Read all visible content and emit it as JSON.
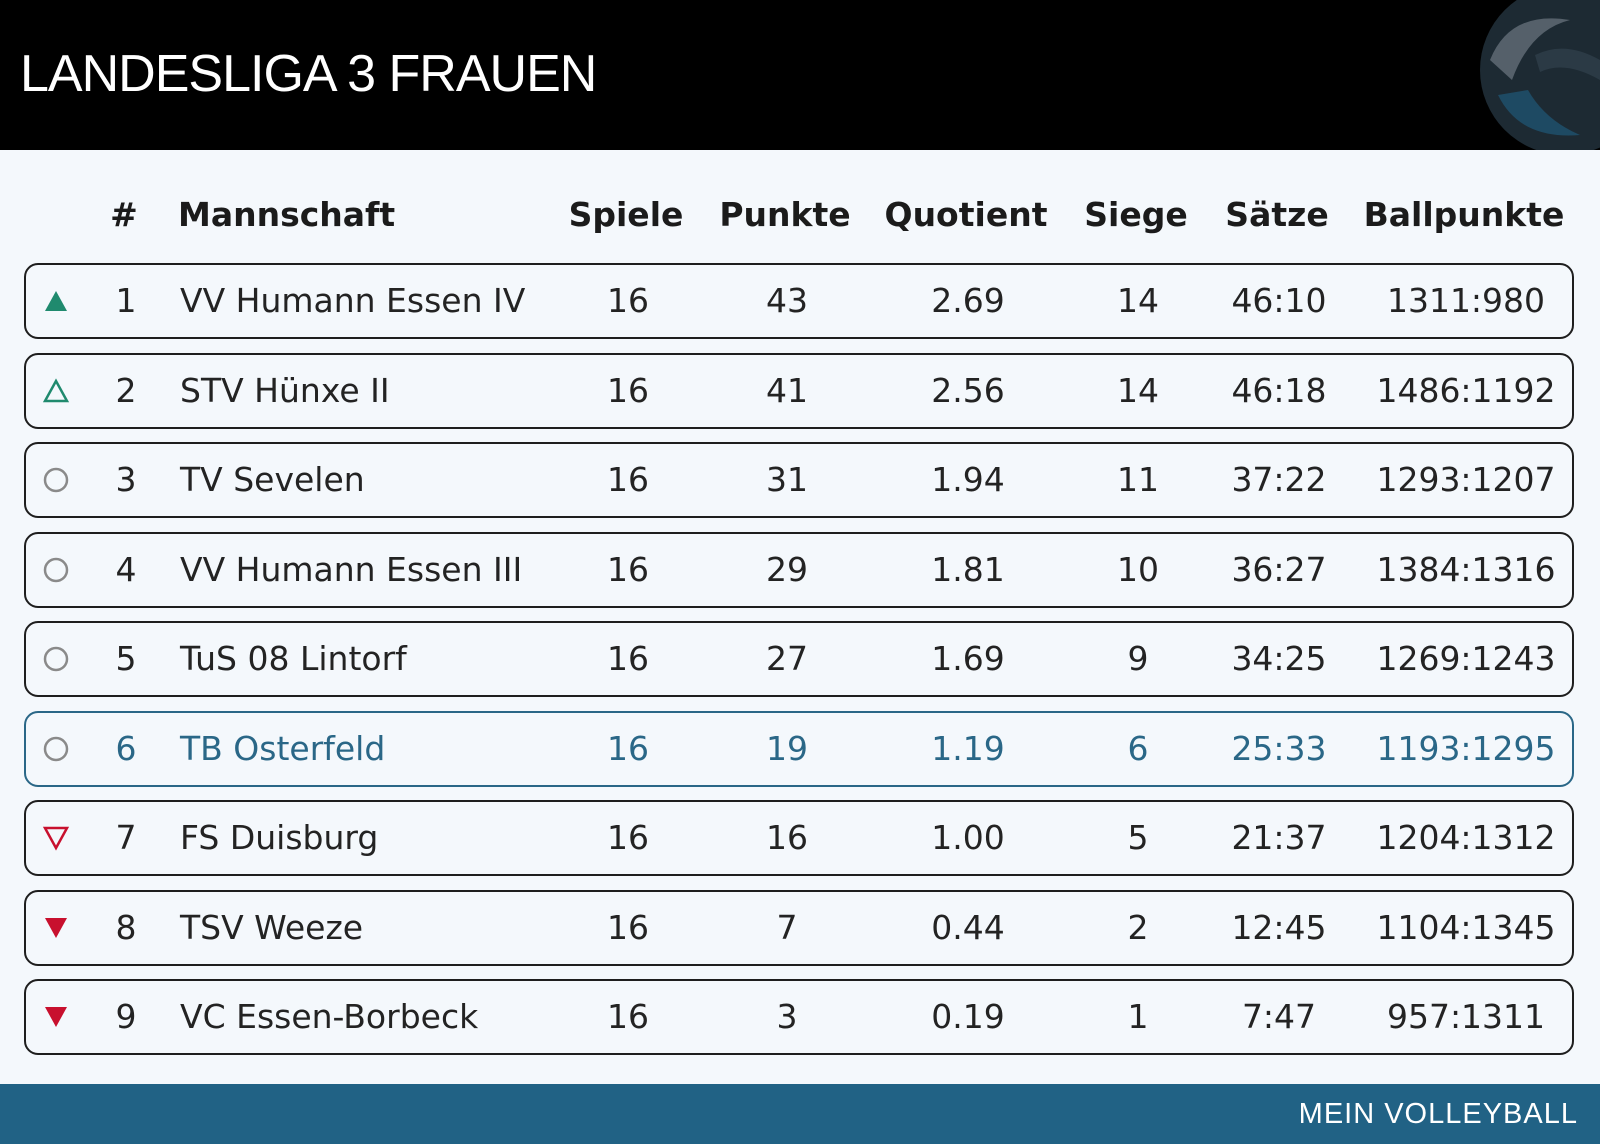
{
  "header": {
    "title": "LANDESLIGA 3 FRAUEN",
    "logo_icon": "volleyball-icon"
  },
  "table": {
    "columns": [
      "#",
      "Mannschaft",
      "Spiele",
      "Punkte",
      "Quotient",
      "Siege",
      "Sätze",
      "Ballpunkte"
    ],
    "rows": [
      {
        "trend": "promoted",
        "rank": "1",
        "team": "VV Humann Essen IV",
        "games": "16",
        "points": "43",
        "quotient": "2.69",
        "wins": "14",
        "sets": "46:10",
        "ballpoints": "1311:980",
        "highlight": false
      },
      {
        "trend": "promotion-playoff",
        "rank": "2",
        "team": "STV Hünxe II",
        "games": "16",
        "points": "41",
        "quotient": "2.56",
        "wins": "14",
        "sets": "46:18",
        "ballpoints": "1486:1192",
        "highlight": false
      },
      {
        "trend": "neutral",
        "rank": "3",
        "team": "TV Sevelen",
        "games": "16",
        "points": "31",
        "quotient": "1.94",
        "wins": "11",
        "sets": "37:22",
        "ballpoints": "1293:1207",
        "highlight": false
      },
      {
        "trend": "neutral",
        "rank": "4",
        "team": "VV Humann Essen III",
        "games": "16",
        "points": "29",
        "quotient": "1.81",
        "wins": "10",
        "sets": "36:27",
        "ballpoints": "1384:1316",
        "highlight": false
      },
      {
        "trend": "neutral",
        "rank": "5",
        "team": "TuS 08 Lintorf",
        "games": "16",
        "points": "27",
        "quotient": "1.69",
        "wins": "9",
        "sets": "34:25",
        "ballpoints": "1269:1243",
        "highlight": false
      },
      {
        "trend": "neutral",
        "rank": "6",
        "team": "TB Osterfeld",
        "games": "16",
        "points": "19",
        "quotient": "1.19",
        "wins": "6",
        "sets": "25:33",
        "ballpoints": "1193:1295",
        "highlight": true
      },
      {
        "trend": "relegation-playoff",
        "rank": "7",
        "team": "FS Duisburg",
        "games": "16",
        "points": "16",
        "quotient": "1.00",
        "wins": "5",
        "sets": "21:37",
        "ballpoints": "1204:1312",
        "highlight": false
      },
      {
        "trend": "relegated",
        "rank": "8",
        "team": "TSV Weeze",
        "games": "16",
        "points": "7",
        "quotient": "0.44",
        "wins": "2",
        "sets": "12:45",
        "ballpoints": "1104:1345",
        "highlight": false
      },
      {
        "trend": "relegated",
        "rank": "9",
        "team": "VC Essen-Borbeck",
        "games": "16",
        "points": "3",
        "quotient": "0.19",
        "wins": "1",
        "sets": "7:47",
        "ballpoints": "957:1311",
        "highlight": false
      }
    ]
  },
  "footer": {
    "brand": "MEIN VOLLEYBALL"
  },
  "colors": {
    "header_bg": "#000000",
    "footer_bg": "#216285",
    "highlight": "#2a6787",
    "promote": "#1f8a6e",
    "relegate": "#c8102e",
    "neutral_icon": "#8a8a8a",
    "background": "#f4f8fc"
  }
}
